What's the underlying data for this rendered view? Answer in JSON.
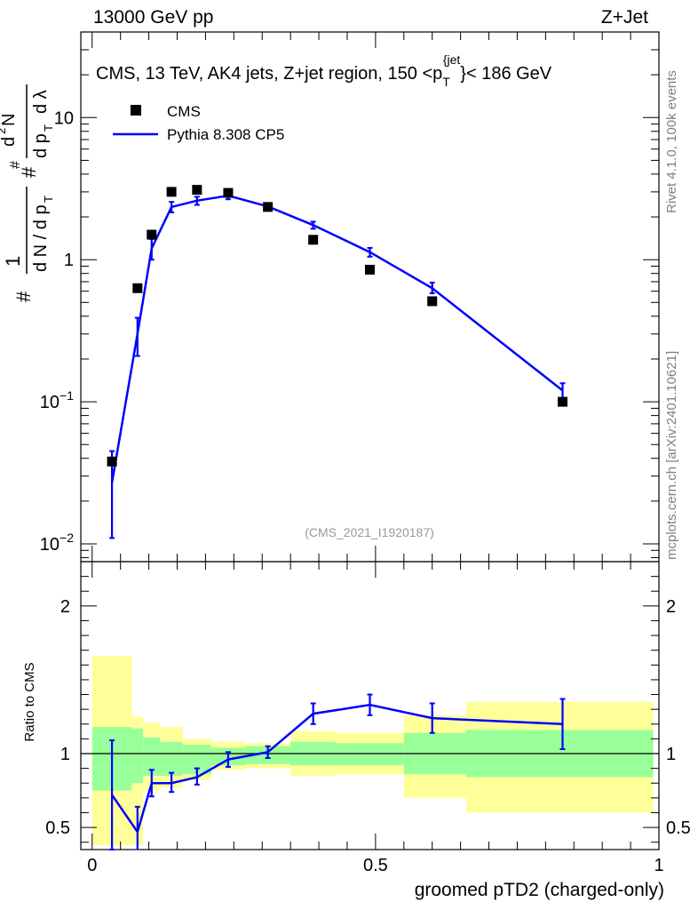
{
  "header": {
    "left": "13000 GeV pp",
    "right": "Z+Jet"
  },
  "side_labels": {
    "rivet": "Rivet 4.1.0,  100k events",
    "mcplots": "mcplots.cern.ch [arXiv:2401.10621]"
  },
  "chart_data": [
    {
      "type": "scatter",
      "panel": "main",
      "title": "CMS, 13 TeV, AK4 jets, Z+jet region, 150 <p_T^{jet}< 186 GeV",
      "analysis_tag": "(CMS_2021_I1920187)",
      "ylabel": "1/(dN/dp_T) d²N/(dp_T dλ)",
      "yscale": "log",
      "ylim": [
        0.0075,
        40
      ],
      "xlim": [
        -0.02,
        1.0
      ],
      "y_ticks": [
        "10^-2",
        "10^-1",
        "1",
        "10"
      ],
      "legend": {
        "position": "top-left",
        "entries": [
          "CMS",
          "Pythia 8.308 CP5"
        ]
      },
      "series": [
        {
          "name": "CMS",
          "color": "#000000",
          "marker": "square",
          "points": [
            {
              "x": 0.035,
              "y": 0.038
            },
            {
              "x": 0.08,
              "y": 0.63
            },
            {
              "x": 0.105,
              "y": 1.5
            },
            {
              "x": 0.14,
              "y": 3.0
            },
            {
              "x": 0.185,
              "y": 3.1
            },
            {
              "x": 0.24,
              "y": 2.95
            },
            {
              "x": 0.31,
              "y": 2.35
            },
            {
              "x": 0.39,
              "y": 1.38
            },
            {
              "x": 0.49,
              "y": 0.85
            },
            {
              "x": 0.6,
              "y": 0.51
            },
            {
              "x": 0.83,
              "y": 0.1
            }
          ]
        },
        {
          "name": "Pythia 8.308 CP5",
          "color": "#0000ff",
          "marker": "line",
          "points": [
            {
              "x": 0.035,
              "y": 0.027,
              "lo": 0.011,
              "hi": 0.045
            },
            {
              "x": 0.08,
              "y": 0.3,
              "lo": 0.21,
              "hi": 0.39
            },
            {
              "x": 0.105,
              "y": 1.2,
              "lo": 1.0,
              "hi": 1.4
            },
            {
              "x": 0.14,
              "y": 2.35,
              "lo": 2.15,
              "hi": 2.55
            },
            {
              "x": 0.185,
              "y": 2.6,
              "lo": 2.43,
              "hi": 2.77
            },
            {
              "x": 0.24,
              "y": 2.82,
              "lo": 2.66,
              "hi": 2.98
            },
            {
              "x": 0.31,
              "y": 2.37,
              "lo": 2.25,
              "hi": 2.49
            },
            {
              "x": 0.39,
              "y": 1.75,
              "lo": 1.65,
              "hi": 1.85
            },
            {
              "x": 0.49,
              "y": 1.13,
              "lo": 1.05,
              "hi": 1.21
            },
            {
              "x": 0.6,
              "y": 0.63,
              "lo": 0.58,
              "hi": 0.69
            },
            {
              "x": 0.83,
              "y": 0.12,
              "lo": 0.105,
              "hi": 0.135
            }
          ]
        }
      ]
    },
    {
      "type": "line",
      "panel": "ratio",
      "ylabel": "Ratio to CMS",
      "xlabel": "groomed pTD2 (charged-only)",
      "xlim": [
        -0.02,
        1.0
      ],
      "ylim": [
        0.35,
        2.3
      ],
      "x_ticks": [
        "0",
        "0.5",
        "1"
      ],
      "y_ticks": [
        "0.5",
        "1",
        "2"
      ],
      "reference_line": 1,
      "uncertainty_bands": [
        {
          "x0": 0.0,
          "x1": 0.07,
          "inner": [
            0.75,
            1.18
          ],
          "outer": [
            0.38,
            1.66
          ]
        },
        {
          "x0": 0.07,
          "x1": 0.09,
          "inner": [
            0.8,
            1.17
          ],
          "outer": [
            0.38,
            1.25
          ]
        },
        {
          "x0": 0.09,
          "x1": 0.12,
          "inner": [
            0.85,
            1.11
          ],
          "outer": [
            0.75,
            1.21
          ]
        },
        {
          "x0": 0.12,
          "x1": 0.16,
          "inner": [
            0.85,
            1.08
          ],
          "outer": [
            0.77,
            1.18
          ]
        },
        {
          "x0": 0.16,
          "x1": 0.21,
          "inner": [
            0.86,
            1.06
          ],
          "outer": [
            0.82,
            1.1
          ]
        },
        {
          "x0": 0.21,
          "x1": 0.27,
          "inner": [
            0.92,
            1.04
          ],
          "outer": [
            0.89,
            1.08
          ]
        },
        {
          "x0": 0.27,
          "x1": 0.35,
          "inner": [
            0.93,
            1.05
          ],
          "outer": [
            0.9,
            1.07
          ]
        },
        {
          "x0": 0.35,
          "x1": 0.43,
          "inner": [
            0.92,
            1.08
          ],
          "outer": [
            0.85,
            1.15
          ]
        },
        {
          "x0": 0.43,
          "x1": 0.55,
          "inner": [
            0.92,
            1.07
          ],
          "outer": [
            0.86,
            1.14
          ]
        },
        {
          "x0": 0.55,
          "x1": 0.66,
          "inner": [
            0.86,
            1.14
          ],
          "outer": [
            0.7,
            1.26
          ]
        },
        {
          "x0": 0.66,
          "x1": 0.99,
          "inner": [
            0.84,
            1.16
          ],
          "outer": [
            0.6,
            1.35
          ]
        }
      ],
      "series": [
        {
          "name": "Pythia 8.308 CP5",
          "color": "#0000ff",
          "points": [
            {
              "x": 0.035,
              "y": 0.72,
              "lo": 0.35,
              "hi": 1.09
            },
            {
              "x": 0.08,
              "y": 0.47,
              "lo": 0.33,
              "hi": 0.64
            },
            {
              "x": 0.105,
              "y": 0.8,
              "lo": 0.71,
              "hi": 0.89
            },
            {
              "x": 0.14,
              "y": 0.8,
              "lo": 0.74,
              "hi": 0.87
            },
            {
              "x": 0.185,
              "y": 0.84,
              "lo": 0.79,
              "hi": 0.9
            },
            {
              "x": 0.24,
              "y": 0.96,
              "lo": 0.91,
              "hi": 1.01
            },
            {
              "x": 0.31,
              "y": 1.01,
              "lo": 0.97,
              "hi": 1.05
            },
            {
              "x": 0.39,
              "y": 1.27,
              "lo": 1.2,
              "hi": 1.34
            },
            {
              "x": 0.49,
              "y": 1.33,
              "lo": 1.26,
              "hi": 1.4
            },
            {
              "x": 0.6,
              "y": 1.24,
              "lo": 1.14,
              "hi": 1.34
            },
            {
              "x": 0.83,
              "y": 1.2,
              "lo": 1.03,
              "hi": 1.37
            }
          ]
        }
      ]
    }
  ]
}
